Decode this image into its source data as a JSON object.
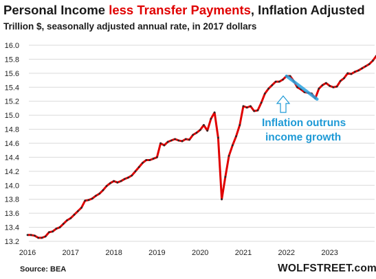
{
  "header": {
    "title_part1": "Personal Income ",
    "title_highlight": "less Transfer Payments",
    "title_part2": ", Inflation Adjusted",
    "subtitle": "Trillion $, seasonally adjusted annual rate, in 2017 dollars"
  },
  "footer": {
    "source": "Source: BEA",
    "brand": "WOLFSTREET.com"
  },
  "colors": {
    "line": "#e00000",
    "markers": "#2a2a2a",
    "highlight": "#29a3e0",
    "annotation": "#1f9ad6",
    "gridline": "#d9d9d9",
    "title_highlight": "#e00000"
  },
  "chart_data": {
    "type": "line",
    "title": "Personal Income less Transfer Payments, Inflation Adjusted",
    "subtitle": "Trillion $, seasonally adjusted annual rate, in 2017 dollars",
    "xlabel": "",
    "ylabel": "",
    "ylim": [
      13.2,
      16.0
    ],
    "yticks": [
      "13.2",
      "13.4",
      "13.6",
      "13.8",
      "14.0",
      "14.2",
      "14.4",
      "14.6",
      "14.8",
      "15.0",
      "15.2",
      "15.4",
      "15.6",
      "15.8",
      "16.0"
    ],
    "xticks": [
      "2016",
      "2017",
      "2018",
      "2019",
      "2020",
      "2021",
      "2022",
      "2023"
    ],
    "grid": "horizontal",
    "series": [
      {
        "values": [
          13.29,
          13.29,
          13.28,
          13.25,
          13.25,
          13.27,
          13.33,
          13.34,
          13.38,
          13.4,
          13.45,
          13.5,
          13.53,
          13.58,
          13.63,
          13.68,
          13.78,
          13.79,
          13.81,
          13.85,
          13.88,
          13.93,
          13.99,
          14.03,
          14.06,
          14.04,
          14.06,
          14.09,
          14.11,
          14.14,
          14.2,
          14.26,
          14.32,
          14.36,
          14.36,
          14.38,
          14.4,
          14.6,
          14.57,
          14.62,
          14.64,
          14.66,
          14.64,
          14.63,
          14.66,
          14.65,
          14.72,
          14.75,
          14.79,
          14.86,
          14.78,
          14.95,
          15.04,
          14.68,
          13.8,
          14.12,
          14.42,
          14.57,
          14.7,
          14.86,
          15.13,
          15.11,
          15.13,
          15.06,
          15.07,
          15.18,
          15.31,
          15.38,
          15.43,
          15.48,
          15.48,
          15.51,
          15.56,
          15.56,
          15.49,
          15.4,
          15.37,
          15.33,
          15.32,
          15.31,
          15.24,
          15.38,
          15.43,
          15.46,
          15.42,
          15.4,
          15.41,
          15.49,
          15.53,
          15.6,
          15.59,
          15.62,
          15.64,
          15.67,
          15.7,
          15.73,
          15.78,
          15.85
        ]
      }
    ],
    "start_year": 2016,
    "annotation": {
      "text_line1": "Inflation outruns",
      "text_line2": "income growth",
      "segment_from_value": 15.56,
      "segment_to_value": 15.23
    }
  }
}
